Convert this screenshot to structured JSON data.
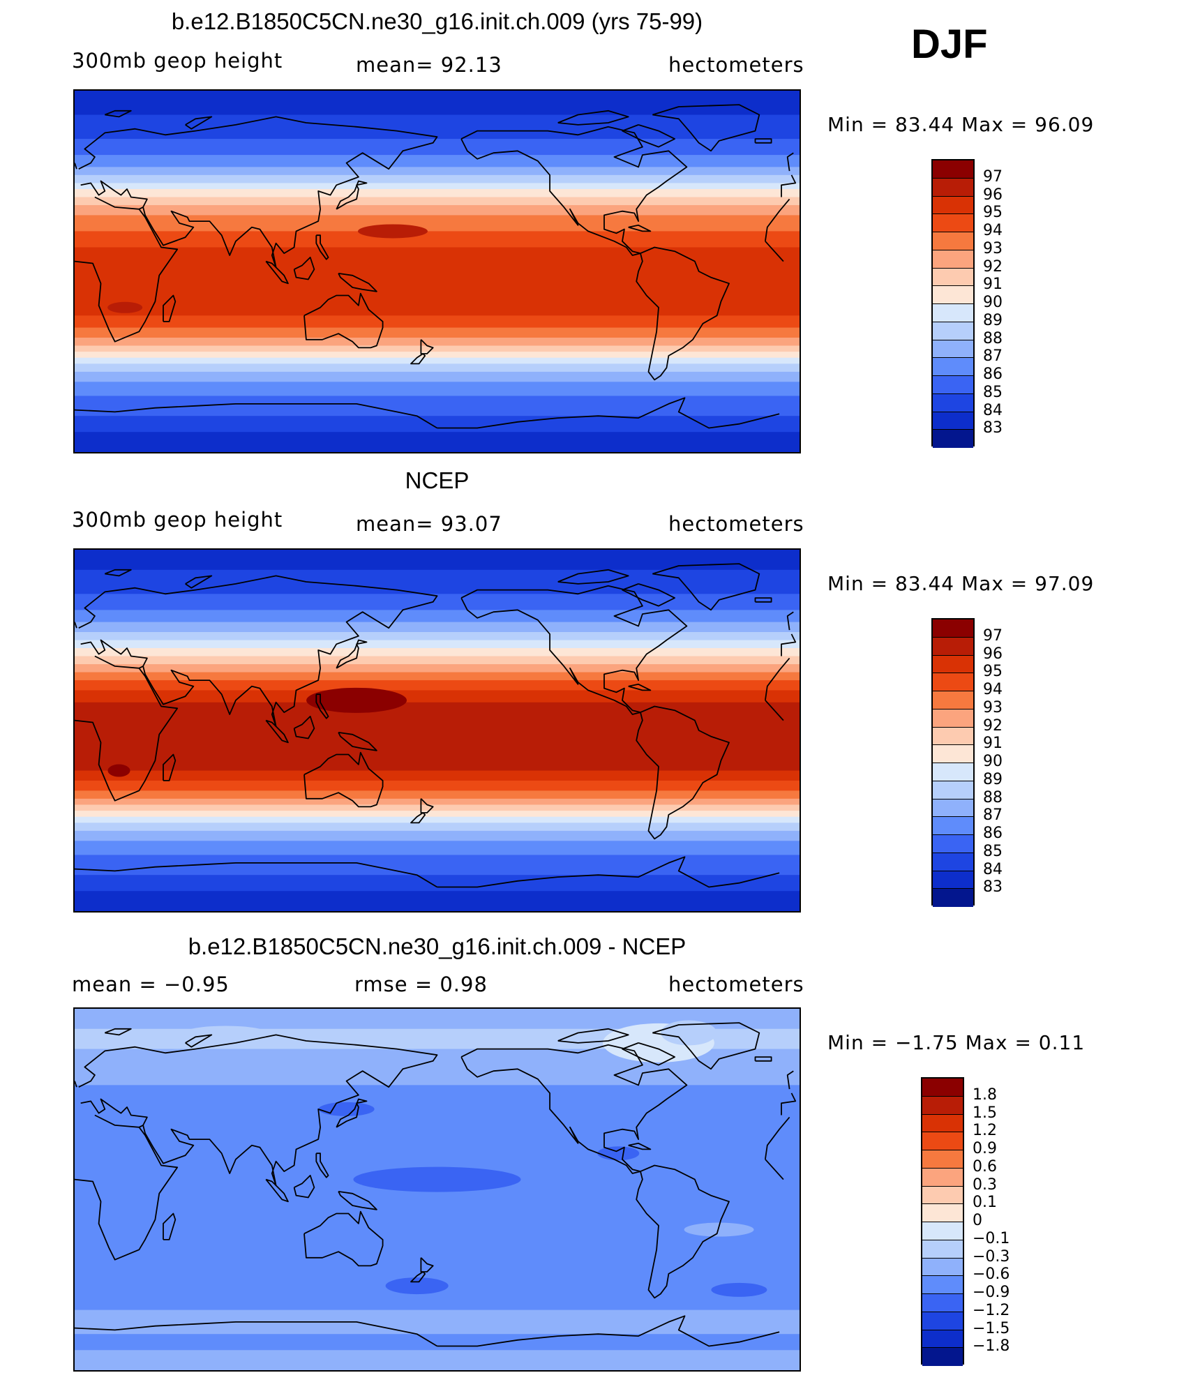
{
  "season": "DJF",
  "panels": [
    {
      "title": "b.e12.B1850C5CN.ne30_g16.init.ch.009 (yrs 75-99)",
      "left_label": "300mb  geop  height",
      "center_label": "mean=   92.13",
      "right_label": "hectometers",
      "minmax": "Min  =    83.44  Max  =    96.09",
      "colorbar_ticks": [
        "97",
        "96",
        "95",
        "94",
        "93",
        "92",
        "91",
        "90",
        "89",
        "88",
        "87",
        "86",
        "85",
        "84",
        "83"
      ]
    },
    {
      "title": "NCEP",
      "left_label": "300mb  geop  height",
      "center_label": "mean=   93.07",
      "right_label": "hectometers",
      "minmax": "Min  =    83.44  Max  =    97.09",
      "colorbar_ticks": [
        "97",
        "96",
        "95",
        "94",
        "93",
        "92",
        "91",
        "90",
        "89",
        "88",
        "87",
        "86",
        "85",
        "84",
        "83"
      ]
    },
    {
      "title": "b.e12.B1850C5CN.ne30_g16.init.ch.009 - NCEP",
      "left_label": "mean  =    −0.95",
      "center_label": "rmse  =     0.98",
      "right_label": "hectometers",
      "minmax": "Min  =    −1.75  Max  =     0.11",
      "colorbar_ticks": [
        "1.8",
        "1.5",
        "1.2",
        "0.9",
        "0.6",
        "0.3",
        "0.1",
        "0",
        "−0.1",
        "−0.3",
        "−0.6",
        "−0.9",
        "−1.2",
        "−1.5",
        "−1.8"
      ]
    }
  ],
  "colors": {
    "scale": [
      "#8b0000",
      "#b81d06",
      "#d93205",
      "#ec4a14",
      "#f6793f",
      "#fba47e",
      "#fdcbb0",
      "#fde6d6",
      "#d7e7fb",
      "#b6cffb",
      "#8fb1fb",
      "#5f8cfb",
      "#3a64f3",
      "#1e45e2",
      "#0d2ecb",
      "#03168e"
    ]
  },
  "map_layers": {
    "panel1": [
      {
        "lat": 90,
        "level": 14
      },
      {
        "lat": 78,
        "level": 13
      },
      {
        "lat": 66,
        "level": 12
      },
      {
        "lat": 58,
        "level": 11
      },
      {
        "lat": 52,
        "level": 10
      },
      {
        "lat": 48,
        "level": 9
      },
      {
        "lat": 44,
        "level": 8
      },
      {
        "lat": 41,
        "level": 7
      },
      {
        "lat": 37,
        "level": 6
      },
      {
        "lat": 33,
        "level": 5
      },
      {
        "lat": 28,
        "level": 4
      },
      {
        "lat": 20,
        "level": 3
      },
      {
        "lat": 12,
        "level": 2
      },
      {
        "lat": -22,
        "level": 3
      },
      {
        "lat": -28,
        "level": 4
      },
      {
        "lat": -33,
        "level": 5
      },
      {
        "lat": -37,
        "level": 6
      },
      {
        "lat": -40,
        "level": 7
      },
      {
        "lat": -43,
        "level": 8
      },
      {
        "lat": -46,
        "level": 9
      },
      {
        "lat": -50,
        "level": 10
      },
      {
        "lat": -55,
        "level": 11
      },
      {
        "lat": -62,
        "level": 12
      },
      {
        "lat": -72,
        "level": 13
      },
      {
        "lat": -80,
        "level": 14
      }
    ],
    "panel2": [
      {
        "lat": 90,
        "level": 14
      },
      {
        "lat": 80,
        "level": 13
      },
      {
        "lat": 68,
        "level": 12
      },
      {
        "lat": 60,
        "level": 11
      },
      {
        "lat": 54,
        "level": 10
      },
      {
        "lat": 49,
        "level": 9
      },
      {
        "lat": 45,
        "level": 8
      },
      {
        "lat": 41,
        "level": 7
      },
      {
        "lat": 37,
        "level": 6
      },
      {
        "lat": 33,
        "level": 5
      },
      {
        "lat": 29,
        "level": 4
      },
      {
        "lat": 25,
        "level": 3
      },
      {
        "lat": 20,
        "level": 2
      },
      {
        "lat": 14,
        "level": 1
      },
      {
        "lat": -20,
        "level": 2
      },
      {
        "lat": -25,
        "level": 3
      },
      {
        "lat": -30,
        "level": 4
      },
      {
        "lat": -34,
        "level": 5
      },
      {
        "lat": -37,
        "level": 6
      },
      {
        "lat": -40,
        "level": 7
      },
      {
        "lat": -43,
        "level": 8
      },
      {
        "lat": -46,
        "level": 9
      },
      {
        "lat": -50,
        "level": 10
      },
      {
        "lat": -55,
        "level": 11
      },
      {
        "lat": -62,
        "level": 12
      },
      {
        "lat": -72,
        "level": 13
      },
      {
        "lat": -80,
        "level": 14
      }
    ],
    "panel3": [
      {
        "lat": 90,
        "level": 10
      },
      {
        "lat": 80,
        "level": 9
      },
      {
        "lat": 70,
        "level": 10
      },
      {
        "lat": 52,
        "level": 11
      },
      {
        "lat": -60,
        "level": 10
      },
      {
        "lat": -72,
        "level": 11
      },
      {
        "lat": -80,
        "level": 10
      }
    ]
  }
}
